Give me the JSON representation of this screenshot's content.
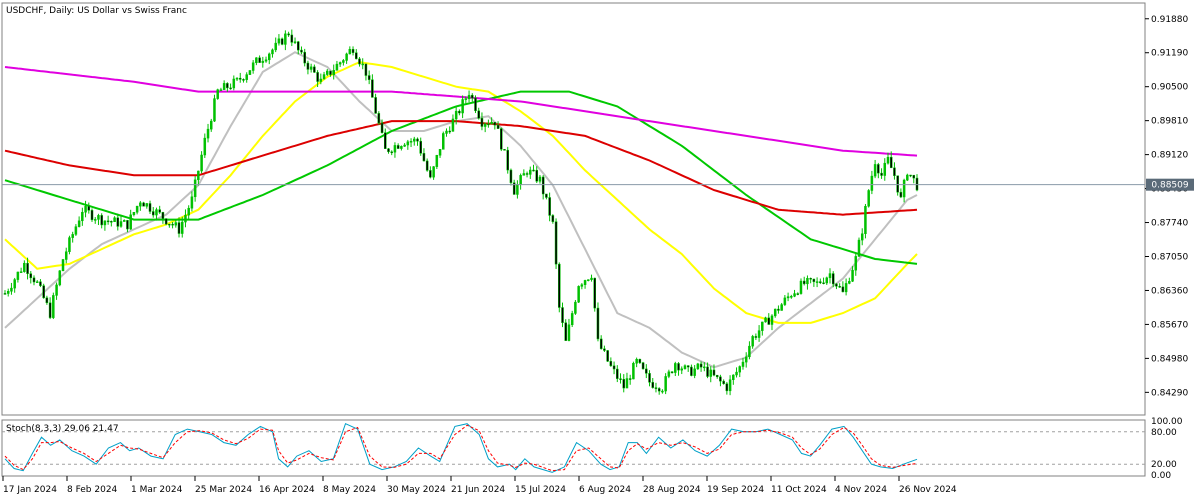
{
  "chart_data": {
    "type": "candlestick",
    "title": "USDCHF, Daily:  US Dollar vs Swiss Franc",
    "symbol": "USDCHF",
    "timeframe": "Daily",
    "description": "US Dollar vs Swiss Franc",
    "current_price": "0.88509",
    "price_axis": {
      "ylim": [
        0.8385,
        0.9218
      ],
      "ticks": [
        "0.91880",
        "0.91190",
        "0.90500",
        "0.89810",
        "0.89120",
        "0.88430",
        "0.87740",
        "0.87050",
        "0.86360",
        "0.85670",
        "0.84980",
        "0.84290"
      ]
    },
    "time_axis": {
      "labels": [
        "17 Jan 2024",
        "8 Feb 2024",
        "1 Mar 2024",
        "25 Mar 2024",
        "16 Apr 2024",
        "8 May 2024",
        "30 May 2024",
        "21 Jun 2024",
        "15 Jul 2024",
        "6 Aug 2024",
        "28 Aug 2024",
        "19 Sep 2024",
        "11 Oct 2024",
        "4 Nov 2024",
        "26 Nov 2024"
      ]
    },
    "price_path": [
      [
        0,
        0.863
      ],
      [
        6,
        0.869
      ],
      [
        10,
        0.865
      ],
      [
        14,
        0.859
      ],
      [
        18,
        0.87
      ],
      [
        24,
        0.88
      ],
      [
        30,
        0.878
      ],
      [
        38,
        0.877
      ],
      [
        42,
        0.882
      ],
      [
        48,
        0.879
      ],
      [
        54,
        0.876
      ],
      [
        58,
        0.882
      ],
      [
        62,
        0.894
      ],
      [
        66,
        0.904
      ],
      [
        72,
        0.906
      ],
      [
        78,
        0.91
      ],
      [
        84,
        0.913
      ],
      [
        88,
        0.916
      ],
      [
        92,
        0.911
      ],
      [
        98,
        0.906
      ],
      [
        104,
        0.91
      ],
      [
        108,
        0.913
      ],
      [
        112,
        0.908
      ],
      [
        118,
        0.892
      ],
      [
        124,
        0.894
      ],
      [
        128,
        0.894
      ],
      [
        132,
        0.886
      ],
      [
        136,
        0.895
      ],
      [
        140,
        0.899
      ],
      [
        144,
        0.904
      ],
      [
        148,
        0.898
      ],
      [
        152,
        0.898
      ],
      [
        158,
        0.884
      ],
      [
        162,
        0.888
      ],
      [
        166,
        0.886
      ],
      [
        170,
        0.877
      ],
      [
        172,
        0.86
      ],
      [
        174,
        0.853
      ],
      [
        178,
        0.865
      ],
      [
        182,
        0.867
      ],
      [
        184,
        0.853
      ],
      [
        188,
        0.848
      ],
      [
        192,
        0.844
      ],
      [
        196,
        0.849
      ],
      [
        200,
        0.845
      ],
      [
        204,
        0.844
      ],
      [
        208,
        0.849
      ],
      [
        212,
        0.847
      ],
      [
        216,
        0.848
      ],
      [
        220,
        0.846
      ],
      [
        224,
        0.844
      ],
      [
        228,
        0.848
      ],
      [
        232,
        0.854
      ],
      [
        236,
        0.857
      ],
      [
        240,
        0.86
      ],
      [
        244,
        0.863
      ],
      [
        248,
        0.865
      ],
      [
        252,
        0.865
      ],
      [
        256,
        0.867
      ],
      [
        260,
        0.863
      ],
      [
        264,
        0.87
      ],
      [
        266,
        0.876
      ],
      [
        268,
        0.884
      ],
      [
        270,
        0.89
      ],
      [
        272,
        0.887
      ],
      [
        274,
        0.89
      ],
      [
        276,
        0.887
      ],
      [
        278,
        0.882
      ],
      [
        280,
        0.888
      ],
      [
        283,
        0.885
      ]
    ],
    "indicators": [
      {
        "type": "moving_average",
        "color": "#c0c0c0",
        "values": [
          [
            0,
            0.856
          ],
          [
            10,
            0.862
          ],
          [
            20,
            0.868
          ],
          [
            30,
            0.873
          ],
          [
            40,
            0.876
          ],
          [
            50,
            0.879
          ],
          [
            60,
            0.885
          ],
          [
            70,
            0.897
          ],
          [
            80,
            0.908
          ],
          [
            90,
            0.912
          ],
          [
            100,
            0.909
          ],
          [
            110,
            0.902
          ],
          [
            120,
            0.896
          ],
          [
            130,
            0.896
          ],
          [
            140,
            0.898
          ],
          [
            150,
            0.899
          ],
          [
            160,
            0.893
          ],
          [
            170,
            0.885
          ],
          [
            180,
            0.872
          ],
          [
            190,
            0.859
          ],
          [
            200,
            0.856
          ],
          [
            210,
            0.851
          ],
          [
            220,
            0.848
          ],
          [
            230,
            0.85
          ],
          [
            240,
            0.856
          ],
          [
            250,
            0.861
          ],
          [
            260,
            0.866
          ],
          [
            270,
            0.874
          ],
          [
            280,
            0.882
          ],
          [
            283,
            0.883
          ]
        ]
      },
      {
        "type": "moving_average",
        "color": "#ffff00",
        "values": [
          [
            0,
            0.874
          ],
          [
            10,
            0.868
          ],
          [
            20,
            0.869
          ],
          [
            30,
            0.872
          ],
          [
            40,
            0.875
          ],
          [
            50,
            0.877
          ],
          [
            60,
            0.88
          ],
          [
            70,
            0.887
          ],
          [
            80,
            0.895
          ],
          [
            90,
            0.902
          ],
          [
            100,
            0.907
          ],
          [
            110,
            0.91
          ],
          [
            120,
            0.909
          ],
          [
            130,
            0.907
          ],
          [
            140,
            0.905
          ],
          [
            150,
            0.904
          ],
          [
            160,
            0.9
          ],
          [
            170,
            0.895
          ],
          [
            180,
            0.888
          ],
          [
            190,
            0.882
          ],
          [
            200,
            0.876
          ],
          [
            210,
            0.871
          ],
          [
            220,
            0.864
          ],
          [
            230,
            0.859
          ],
          [
            240,
            0.857
          ],
          [
            250,
            0.857
          ],
          [
            260,
            0.859
          ],
          [
            270,
            0.862
          ],
          [
            280,
            0.869
          ],
          [
            283,
            0.871
          ]
        ]
      },
      {
        "type": "moving_average",
        "color": "#00c800",
        "values": [
          [
            0,
            0.886
          ],
          [
            20,
            0.882
          ],
          [
            40,
            0.878
          ],
          [
            60,
            0.878
          ],
          [
            80,
            0.883
          ],
          [
            100,
            0.889
          ],
          [
            120,
            0.896
          ],
          [
            140,
            0.901
          ],
          [
            160,
            0.904
          ],
          [
            175,
            0.904
          ],
          [
            190,
            0.901
          ],
          [
            210,
            0.893
          ],
          [
            230,
            0.883
          ],
          [
            250,
            0.874
          ],
          [
            270,
            0.87
          ],
          [
            283,
            0.869
          ]
        ]
      },
      {
        "type": "moving_average",
        "color": "#dc0000",
        "values": [
          [
            0,
            0.892
          ],
          [
            20,
            0.889
          ],
          [
            40,
            0.887
          ],
          [
            60,
            0.887
          ],
          [
            80,
            0.891
          ],
          [
            100,
            0.895
          ],
          [
            120,
            0.898
          ],
          [
            140,
            0.898
          ],
          [
            160,
            0.897
          ],
          [
            180,
            0.895
          ],
          [
            200,
            0.89
          ],
          [
            220,
            0.884
          ],
          [
            240,
            0.88
          ],
          [
            260,
            0.879
          ],
          [
            283,
            0.88
          ]
        ]
      },
      {
        "type": "moving_average",
        "color": "#e000e0",
        "values": [
          [
            0,
            0.909
          ],
          [
            40,
            0.906
          ],
          [
            60,
            0.904
          ],
          [
            80,
            0.904
          ],
          [
            100,
            0.904
          ],
          [
            120,
            0.904
          ],
          [
            140,
            0.903
          ],
          [
            160,
            0.902
          ],
          [
            180,
            0.9
          ],
          [
            200,
            0.898
          ],
          [
            220,
            0.896
          ],
          [
            240,
            0.894
          ],
          [
            260,
            0.892
          ],
          [
            283,
            0.891
          ]
        ]
      }
    ],
    "stochastic": {
      "label": "Stoch(8,3,3) 29.06 21.47",
      "scale_labels": [
        "100.00",
        "80.00",
        "20.00",
        "0.00"
      ],
      "levels": [
        80,
        20
      ],
      "ylim": [
        0,
        100
      ],
      "main_color": "#00a0c8",
      "signal_color": "#ff0000",
      "main": [
        [
          0,
          30
        ],
        [
          3,
          12
        ],
        [
          6,
          8
        ],
        [
          9,
          40
        ],
        [
          12,
          70
        ],
        [
          15,
          55
        ],
        [
          18,
          65
        ],
        [
          22,
          45
        ],
        [
          26,
          35
        ],
        [
          30,
          20
        ],
        [
          34,
          50
        ],
        [
          38,
          60
        ],
        [
          41,
          45
        ],
        [
          44,
          50
        ],
        [
          48,
          35
        ],
        [
          52,
          30
        ],
        [
          56,
          75
        ],
        [
          60,
          85
        ],
        [
          64,
          80
        ],
        [
          68,
          75
        ],
        [
          72,
          60
        ],
        [
          76,
          55
        ],
        [
          80,
          75
        ],
        [
          84,
          90
        ],
        [
          88,
          80
        ],
        [
          90,
          30
        ],
        [
          93,
          15
        ],
        [
          96,
          35
        ],
        [
          100,
          45
        ],
        [
          104,
          25
        ],
        [
          108,
          30
        ],
        [
          112,
          95
        ],
        [
          116,
          85
        ],
        [
          120,
          20
        ],
        [
          124,
          10
        ],
        [
          128,
          15
        ],
        [
          132,
          25
        ],
        [
          136,
          50
        ],
        [
          140,
          35
        ],
        [
          143,
          25
        ],
        [
          148,
          90
        ],
        [
          152,
          95
        ],
        [
          156,
          75
        ],
        [
          159,
          30
        ],
        [
          162,
          15
        ],
        [
          166,
          20
        ],
        [
          168,
          10
        ],
        [
          171,
          30
        ],
        [
          174,
          15
        ],
        [
          177,
          10
        ],
        [
          180,
          5
        ],
        [
          184,
          15
        ],
        [
          188,
          60
        ],
        [
          192,
          45
        ],
        [
          196,
          20
        ],
        [
          199,
          10
        ],
        [
          202,
          15
        ],
        [
          205,
          60
        ],
        [
          208,
          60
        ],
        [
          211,
          40
        ],
        [
          215,
          70
        ],
        [
          219,
          50
        ],
        [
          223,
          65
        ],
        [
          227,
          45
        ],
        [
          231,
          35
        ],
        [
          235,
          55
        ],
        [
          239,
          85
        ],
        [
          243,
          80
        ],
        [
          247,
          80
        ],
        [
          251,
          85
        ],
        [
          255,
          75
        ],
        [
          259,
          65
        ],
        [
          262,
          40
        ],
        [
          265,
          35
        ],
        [
          268,
          55
        ],
        [
          272,
          85
        ],
        [
          276,
          90
        ],
        [
          279,
          70
        ],
        [
          282,
          45
        ],
        [
          285,
          20
        ],
        [
          288,
          15
        ],
        [
          292,
          12
        ],
        [
          296,
          21
        ],
        [
          300,
          29
        ]
      ],
      "signal": [
        [
          0,
          35
        ],
        [
          3,
          18
        ],
        [
          6,
          10
        ],
        [
          9,
          30
        ],
        [
          12,
          60
        ],
        [
          15,
          60
        ],
        [
          18,
          62
        ],
        [
          22,
          50
        ],
        [
          26,
          40
        ],
        [
          30,
          25
        ],
        [
          34,
          40
        ],
        [
          38,
          55
        ],
        [
          41,
          50
        ],
        [
          44,
          48
        ],
        [
          48,
          40
        ],
        [
          52,
          32
        ],
        [
          56,
          60
        ],
        [
          60,
          80
        ],
        [
          64,
          82
        ],
        [
          68,
          78
        ],
        [
          72,
          65
        ],
        [
          76,
          58
        ],
        [
          80,
          68
        ],
        [
          84,
          85
        ],
        [
          88,
          83
        ],
        [
          90,
          45
        ],
        [
          93,
          22
        ],
        [
          96,
          28
        ],
        [
          100,
          40
        ],
        [
          104,
          32
        ],
        [
          108,
          28
        ],
        [
          112,
          80
        ],
        [
          116,
          88
        ],
        [
          120,
          35
        ],
        [
          124,
          15
        ],
        [
          128,
          14
        ],
        [
          132,
          20
        ],
        [
          136,
          40
        ],
        [
          140,
          40
        ],
        [
          143,
          30
        ],
        [
          148,
          75
        ],
        [
          152,
          92
        ],
        [
          156,
          82
        ],
        [
          159,
          45
        ],
        [
          162,
          22
        ],
        [
          166,
          18
        ],
        [
          168,
          14
        ],
        [
          171,
          22
        ],
        [
          174,
          20
        ],
        [
          177,
          14
        ],
        [
          180,
          8
        ],
        [
          184,
          10
        ],
        [
          188,
          45
        ],
        [
          192,
          50
        ],
        [
          196,
          30
        ],
        [
          199,
          15
        ],
        [
          202,
          13
        ],
        [
          205,
          45
        ],
        [
          208,
          58
        ],
        [
          211,
          48
        ],
        [
          215,
          60
        ],
        [
          219,
          55
        ],
        [
          223,
          60
        ],
        [
          227,
          52
        ],
        [
          231,
          40
        ],
        [
          235,
          48
        ],
        [
          239,
          75
        ],
        [
          243,
          80
        ],
        [
          247,
          80
        ],
        [
          251,
          83
        ],
        [
          255,
          78
        ],
        [
          259,
          70
        ],
        [
          262,
          50
        ],
        [
          265,
          38
        ],
        [
          268,
          48
        ],
        [
          272,
          75
        ],
        [
          276,
          88
        ],
        [
          279,
          78
        ],
        [
          282,
          55
        ],
        [
          285,
          30
        ],
        [
          288,
          18
        ],
        [
          292,
          14
        ],
        [
          296,
          18
        ],
        [
          300,
          21.47
        ]
      ]
    }
  }
}
